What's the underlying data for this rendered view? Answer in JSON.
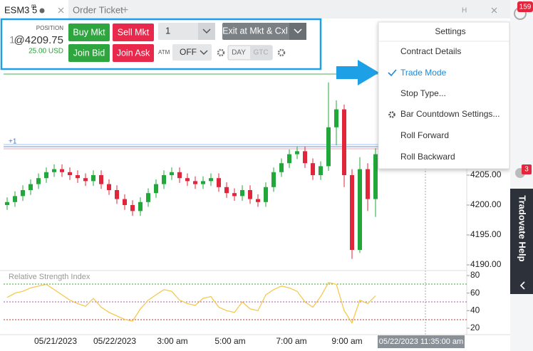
{
  "tabs": {
    "symbol": "ESM3 5",
    "superscript": "m",
    "second": "Order Ticket",
    "new_tab": "+",
    "window_letter": "H"
  },
  "order_ticket": {
    "position_label": "POSITION",
    "position_qty": "1",
    "position_price": "@4209.75",
    "pnl": "25.00 USD",
    "buy_mkt": "Buy Mkt",
    "sell_mkt": "Sell Mkt",
    "join_bid": "Join Bid",
    "join_ask": "Join Ask",
    "quantity": "1",
    "exit": "Exit at Mkt & Cxl",
    "atm_label": "ATM",
    "atm_value": "OFF",
    "tif": [
      "DAY",
      "GTC"
    ]
  },
  "menu": {
    "title": "Settings",
    "items": [
      "Contract Details",
      "Trade Mode",
      "Stop Type...",
      "Bar Countdown Settings...",
      "Roll Forward",
      "Roll Backward"
    ]
  },
  "chart": {
    "position_marker": "+1",
    "price_ticks": [
      {
        "value": 4205,
        "label": "4205.00"
      },
      {
        "value": 4200,
        "label": "4200.00"
      },
      {
        "value": 4195,
        "label": "4195.00"
      },
      {
        "value": 4190,
        "label": "4190.00"
      }
    ],
    "time_labels": [
      "05/21/2023",
      "05/22/2023",
      "3:00 am",
      "5:00 am",
      "7:00 am",
      "9:00 am"
    ],
    "crosshair_time": "05/22/2023 11:35:00 am",
    "candles": [
      [
        4200,
        4201.3,
        4199.2,
        4200.5
      ],
      [
        4200.5,
        4202.3,
        4199.7,
        4201.5
      ],
      [
        4201.5,
        4203.3,
        4200.7,
        4202.5
      ],
      [
        4202.5,
        4204.3,
        4201.7,
        4203.5
      ],
      [
        4203.5,
        4205.3,
        4202.7,
        4204.5
      ],
      [
        4204.5,
        4206.3,
        4203.7,
        4205.5
      ],
      [
        4205.5,
        4206.8,
        4204.7,
        4206
      ],
      [
        4206,
        4206.8,
        4204.7,
        4205.5
      ],
      [
        4205.5,
        4206.3,
        4204.2,
        4205
      ],
      [
        4205,
        4205.8,
        4203.7,
        4204.5
      ],
      [
        4204.5,
        4205.3,
        4203.2,
        4204
      ],
      [
        4204,
        4205.8,
        4203.2,
        4205
      ],
      [
        4205,
        4205.8,
        4202.7,
        4203.5
      ],
      [
        4203.5,
        4204.3,
        4201.7,
        4202.5
      ],
      [
        4202.5,
        4203.3,
        4200.2,
        4201
      ],
      [
        4201,
        4201.8,
        4199.2,
        4200
      ],
      [
        4200,
        4200.8,
        4198.2,
        4199
      ],
      [
        4199,
        4201.3,
        4198.2,
        4200.5
      ],
      [
        4200.5,
        4202.8,
        4199.7,
        4202
      ],
      [
        4202,
        4204.3,
        4201.2,
        4203.5
      ],
      [
        4203.5,
        4205.8,
        4202.7,
        4205
      ],
      [
        4205,
        4206.3,
        4204.2,
        4205.5
      ],
      [
        4205.5,
        4206.3,
        4203.7,
        4204.5
      ],
      [
        4204.5,
        4205.3,
        4203.2,
        4204
      ],
      [
        4204,
        4204.8,
        4202.7,
        4203.5
      ],
      [
        4203.5,
        4204.8,
        4202.7,
        4204
      ],
      [
        4204,
        4205.3,
        4203.2,
        4204.5
      ],
      [
        4204.5,
        4205.3,
        4202.2,
        4203
      ],
      [
        4203,
        4203.8,
        4201.2,
        4202
      ],
      [
        4202,
        4202.8,
        4200.7,
        4201.5
      ],
      [
        4201.5,
        4203.3,
        4200.7,
        4202.5
      ],
      [
        4202.5,
        4203.3,
        4200.2,
        4201
      ],
      [
        4201,
        4201.8,
        4199.7,
        4200.5
      ],
      [
        4200.5,
        4203.8,
        4199.7,
        4203
      ],
      [
        4203,
        4206.3,
        4202.2,
        4205.5
      ],
      [
        4205.5,
        4207.8,
        4204.7,
        4207
      ],
      [
        4207,
        4209.3,
        4206.2,
        4208.5
      ],
      [
        4208.5,
        4209.8,
        4207.7,
        4209
      ],
      [
        4209,
        4209.8,
        4206.2,
        4207
      ],
      [
        4207,
        4207.8,
        4204.2,
        4205
      ],
      [
        4205,
        4207.3,
        4204.2,
        4206.5
      ],
      [
        4206.5,
        4220.5,
        4205.7,
        4213
      ],
      [
        4213,
        4217.5,
        4210,
        4216
      ],
      [
        4216,
        4216.8,
        4203,
        4205
      ],
      [
        4205,
        4206,
        4191,
        4192.5
      ],
      [
        4192.5,
        4208,
        4192,
        4206
      ],
      [
        4206,
        4207,
        4199,
        4201
      ],
      [
        4201,
        4209.5,
        4198,
        4208.5
      ]
    ],
    "rsi": {
      "title": "Relative Strength Index",
      "ticks": [
        80,
        60,
        40,
        20
      ],
      "values": [
        55,
        60,
        62,
        66,
        68,
        70,
        64,
        58,
        52,
        48,
        45,
        54,
        44,
        38,
        34,
        30,
        28,
        42,
        52,
        58,
        64,
        62,
        52,
        48,
        46,
        54,
        56,
        44,
        40,
        38,
        50,
        42,
        40,
        58,
        64,
        68,
        66,
        62,
        50,
        44,
        56,
        72,
        70,
        40,
        26,
        52,
        48,
        57
      ]
    }
  },
  "sidebar": {
    "badge": "159",
    "badge2": "3",
    "help": "Tradovate Help"
  }
}
